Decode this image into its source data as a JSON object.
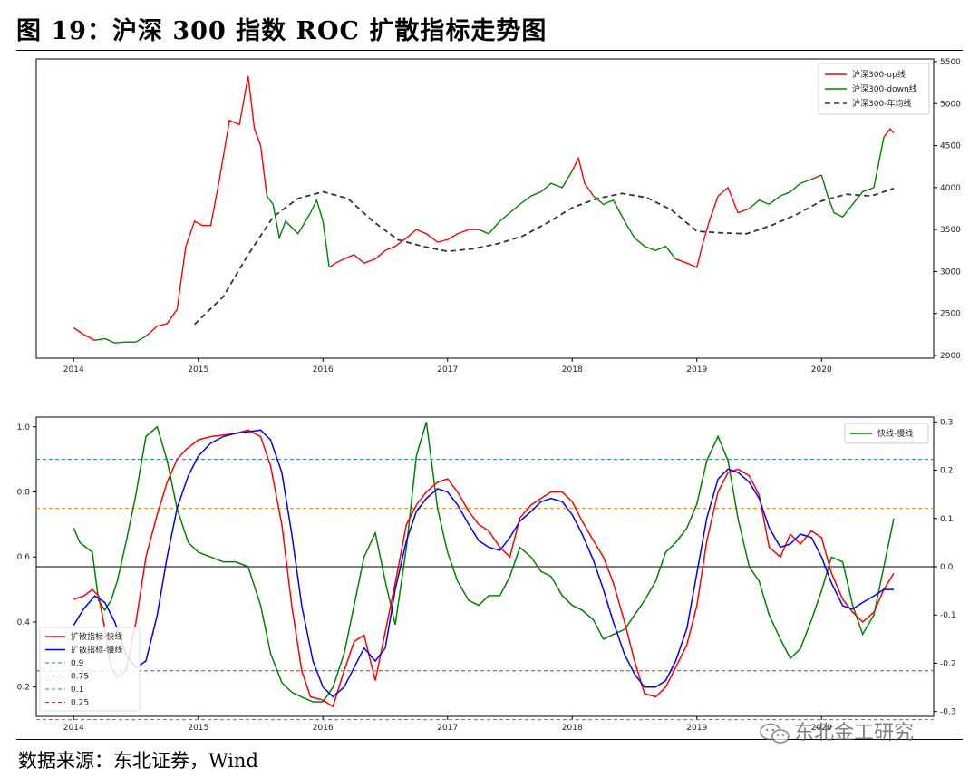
{
  "header": {
    "title": "图 19：沪深 300 指数 ROC 扩散指标走势图"
  },
  "footer": {
    "source": "数据来源：东北证券，Wind",
    "watermark": "东北金工研究"
  },
  "chart_data": [
    {
      "type": "line",
      "x_ticks": [
        "2014",
        "2015",
        "2016",
        "2017",
        "2018",
        "2019",
        "2020"
      ],
      "y_right_ticks": [
        "2000",
        "2500",
        "3000",
        "3500",
        "4000",
        "4500",
        "5000",
        "5500"
      ],
      "ylim_right": [
        2000,
        5500
      ],
      "xlim": [
        2013.7,
        2020.9
      ],
      "grid": false,
      "legend_position": "top-right",
      "legend": [
        {
          "name": "沪深300-up线",
          "color": "#ff0000",
          "dash": ""
        },
        {
          "name": "沪深300-down线",
          "color": "#008000",
          "dash": ""
        },
        {
          "name": "沪深300-年均线",
          "color": "#333333",
          "dash": "6,4"
        }
      ],
      "price": {
        "x": [
          2014.0,
          2014.08,
          2014.17,
          2014.25,
          2014.33,
          2014.42,
          2014.5,
          2014.58,
          2014.67,
          2014.75,
          2014.83,
          2014.9,
          2014.97,
          2015.03,
          2015.1,
          2015.17,
          2015.25,
          2015.33,
          2015.4,
          2015.45,
          2015.5,
          2015.55,
          2015.6,
          2015.65,
          2015.7,
          2015.8,
          2015.9,
          2015.95,
          2016.0,
          2016.05,
          2016.1,
          2016.17,
          2016.25,
          2016.33,
          2016.42,
          2016.5,
          2016.58,
          2016.67,
          2016.75,
          2016.83,
          2016.92,
          2017.0,
          2017.08,
          2017.17,
          2017.25,
          2017.33,
          2017.42,
          2017.5,
          2017.58,
          2017.67,
          2017.75,
          2017.83,
          2017.92,
          2018.0,
          2018.05,
          2018.1,
          2018.17,
          2018.25,
          2018.33,
          2018.42,
          2018.5,
          2018.58,
          2018.67,
          2018.75,
          2018.83,
          2018.92,
          2019.0,
          2019.05,
          2019.1,
          2019.17,
          2019.25,
          2019.33,
          2019.42,
          2019.5,
          2019.58,
          2019.67,
          2019.75,
          2019.83,
          2019.92,
          2020.0,
          2020.05,
          2020.1,
          2020.17,
          2020.25,
          2020.33,
          2020.42,
          2020.5,
          2020.55,
          2020.58
        ],
        "y": [
          2330,
          2250,
          2180,
          2200,
          2150,
          2160,
          2160,
          2230,
          2350,
          2380,
          2550,
          3300,
          3600,
          3550,
          3550,
          4100,
          4800,
          4750,
          5330,
          4700,
          4500,
          3900,
          3800,
          3400,
          3600,
          3450,
          3700,
          3850,
          3600,
          3050,
          3100,
          3150,
          3200,
          3100,
          3150,
          3250,
          3300,
          3400,
          3500,
          3450,
          3350,
          3380,
          3450,
          3500,
          3500,
          3450,
          3600,
          3700,
          3800,
          3900,
          3950,
          4050,
          4000,
          4200,
          4350,
          4050,
          3900,
          3800,
          3850,
          3600,
          3400,
          3300,
          3250,
          3300,
          3150,
          3100,
          3050,
          3350,
          3600,
          3900,
          4000,
          3700,
          3750,
          3850,
          3800,
          3900,
          3950,
          4050,
          4100,
          4150,
          3900,
          3700,
          3650,
          3800,
          3950,
          4000,
          4600,
          4700,
          4650
        ],
        "up_segments": [
          [
            0,
            2
          ],
          [
            7,
            21
          ],
          [
            29,
            44
          ],
          [
            53,
            56
          ],
          [
            64,
            72
          ],
          [
            78,
            79
          ],
          [
            86,
            88
          ]
        ],
        "down_segments": [
          [
            2,
            7
          ],
          [
            21,
            29
          ],
          [
            44,
            53
          ],
          [
            56,
            64
          ],
          [
            72,
            78
          ],
          [
            79,
            86
          ]
        ]
      },
      "annual_ma": {
        "x": [
          2014.97,
          2015.2,
          2015.4,
          2015.6,
          2015.8,
          2016.0,
          2016.2,
          2016.4,
          2016.6,
          2016.8,
          2017.0,
          2017.2,
          2017.4,
          2017.6,
          2017.8,
          2018.0,
          2018.2,
          2018.4,
          2018.6,
          2018.8,
          2019.0,
          2019.2,
          2019.4,
          2019.6,
          2019.8,
          2020.0,
          2020.2,
          2020.4,
          2020.58
        ],
        "y": [
          2370,
          2700,
          3200,
          3650,
          3870,
          3950,
          3870,
          3600,
          3380,
          3300,
          3240,
          3270,
          3330,
          3420,
          3580,
          3760,
          3870,
          3930,
          3880,
          3730,
          3480,
          3460,
          3450,
          3550,
          3680,
          3840,
          3920,
          3900,
          3990
        ]
      }
    },
    {
      "type": "line",
      "x_ticks": [
        "2014",
        "2015",
        "2016",
        "2017",
        "2018",
        "2019",
        "2020"
      ],
      "y_left_ticks": [
        "0.2",
        "0.4",
        "0.6",
        "0.8",
        "1.0"
      ],
      "y_right_ticks": [
        "-0.3",
        "-0.2",
        "-0.1",
        "0.0",
        "0.1",
        "0.2",
        "0.3"
      ],
      "ylim_left": [
        0.11,
        1.03
      ],
      "ylim_right": [
        -0.31,
        0.31
      ],
      "xlim": [
        2013.7,
        2020.9
      ],
      "grid": false,
      "legend_left_position": "bottom-left",
      "legend_right_position": "top-right",
      "legend_left": [
        {
          "name": "扩散指标-快线",
          "color": "#ff0000",
          "dash": ""
        },
        {
          "name": "扩散指标-慢线",
          "color": "#0000ff",
          "dash": ""
        },
        {
          "name": "0.9",
          "color": "#1f77b4",
          "dash": "4,3"
        },
        {
          "name": "0.75",
          "color": "#ff7f0e",
          "dash": "4,3"
        },
        {
          "name": "0.1",
          "color": "#2ca02c",
          "dash": "4,3"
        },
        {
          "name": "0.25",
          "color": "#d62728",
          "dash": "4,3"
        }
      ],
      "legend_right": [
        {
          "name": "快线-慢线",
          "color": "#008000",
          "dash": ""
        }
      ],
      "thresholds": [
        0.9,
        0.75,
        0.1,
        0.25
      ],
      "zero_line": 0.0,
      "series": [
        {
          "name": "扩散指标-快线",
          "axis": "left",
          "x": [
            2014.0,
            2014.08,
            2014.15,
            2014.2,
            2014.25,
            2014.3,
            2014.35,
            2014.42,
            2014.5,
            2014.58,
            2014.67,
            2014.75,
            2014.83,
            2014.9,
            2015.0,
            2015.1,
            2015.2,
            2015.3,
            2015.4,
            2015.5,
            2015.58,
            2015.67,
            2015.75,
            2015.83,
            2015.9,
            2016.0,
            2016.08,
            2016.17,
            2016.25,
            2016.33,
            2016.42,
            2016.5,
            2016.58,
            2016.67,
            2016.75,
            2016.83,
            2016.92,
            2017.0,
            2017.08,
            2017.17,
            2017.25,
            2017.33,
            2017.42,
            2017.5,
            2017.58,
            2017.67,
            2017.75,
            2017.83,
            2017.92,
            2018.0,
            2018.08,
            2018.17,
            2018.25,
            2018.33,
            2018.42,
            2018.5,
            2018.58,
            2018.67,
            2018.75,
            2018.83,
            2018.92,
            2019.0,
            2019.08,
            2019.17,
            2019.25,
            2019.33,
            2019.42,
            2019.5,
            2019.58,
            2019.67,
            2019.75,
            2019.83,
            2019.92,
            2020.0,
            2020.08,
            2020.17,
            2020.25,
            2020.33,
            2020.42,
            2020.5,
            2020.58
          ],
          "y": [
            0.47,
            0.48,
            0.5,
            0.48,
            0.38,
            0.26,
            0.23,
            0.25,
            0.4,
            0.6,
            0.73,
            0.83,
            0.9,
            0.93,
            0.96,
            0.97,
            0.975,
            0.98,
            0.99,
            0.97,
            0.88,
            0.7,
            0.45,
            0.25,
            0.17,
            0.16,
            0.14,
            0.25,
            0.34,
            0.36,
            0.22,
            0.37,
            0.52,
            0.7,
            0.76,
            0.8,
            0.83,
            0.84,
            0.8,
            0.74,
            0.7,
            0.68,
            0.63,
            0.6,
            0.72,
            0.76,
            0.78,
            0.8,
            0.8,
            0.77,
            0.71,
            0.65,
            0.6,
            0.52,
            0.4,
            0.28,
            0.18,
            0.17,
            0.2,
            0.26,
            0.33,
            0.45,
            0.65,
            0.8,
            0.86,
            0.87,
            0.85,
            0.79,
            0.63,
            0.6,
            0.67,
            0.64,
            0.68,
            0.66,
            0.55,
            0.47,
            0.43,
            0.4,
            0.43,
            0.5,
            0.55
          ]
        },
        {
          "name": "扩散指标-慢线",
          "axis": "left",
          "x": [
            2014.0,
            2014.08,
            2014.17,
            2014.25,
            2014.33,
            2014.42,
            2014.5,
            2014.58,
            2014.67,
            2014.75,
            2014.83,
            2014.92,
            2015.0,
            2015.1,
            2015.2,
            2015.3,
            2015.4,
            2015.5,
            2015.58,
            2015.67,
            2015.75,
            2015.83,
            2015.92,
            2016.0,
            2016.08,
            2016.17,
            2016.25,
            2016.33,
            2016.42,
            2016.5,
            2016.58,
            2016.67,
            2016.75,
            2016.83,
            2016.92,
            2017.0,
            2017.08,
            2017.17,
            2017.25,
            2017.33,
            2017.42,
            2017.5,
            2017.58,
            2017.67,
            2017.75,
            2017.83,
            2017.92,
            2018.0,
            2018.08,
            2018.17,
            2018.25,
            2018.33,
            2018.42,
            2018.5,
            2018.58,
            2018.67,
            2018.75,
            2018.83,
            2018.92,
            2019.0,
            2019.08,
            2019.17,
            2019.25,
            2019.33,
            2019.42,
            2019.5,
            2019.58,
            2019.67,
            2019.75,
            2019.83,
            2019.92,
            2020.0,
            2020.08,
            2020.17,
            2020.25,
            2020.33,
            2020.42,
            2020.5,
            2020.58
          ],
          "y": [
            0.39,
            0.44,
            0.48,
            0.46,
            0.4,
            0.3,
            0.26,
            0.28,
            0.42,
            0.6,
            0.75,
            0.85,
            0.91,
            0.95,
            0.97,
            0.98,
            0.985,
            0.99,
            0.96,
            0.86,
            0.67,
            0.45,
            0.28,
            0.2,
            0.17,
            0.2,
            0.26,
            0.32,
            0.28,
            0.32,
            0.5,
            0.65,
            0.74,
            0.78,
            0.81,
            0.8,
            0.76,
            0.7,
            0.65,
            0.63,
            0.62,
            0.66,
            0.71,
            0.74,
            0.77,
            0.78,
            0.77,
            0.73,
            0.67,
            0.59,
            0.5,
            0.4,
            0.3,
            0.24,
            0.2,
            0.2,
            0.22,
            0.28,
            0.38,
            0.55,
            0.72,
            0.84,
            0.87,
            0.86,
            0.83,
            0.78,
            0.69,
            0.63,
            0.64,
            0.67,
            0.66,
            0.6,
            0.52,
            0.45,
            0.44,
            0.46,
            0.48,
            0.5,
            0.5
          ]
        },
        {
          "name": "快线-慢线",
          "axis": "right",
          "x": [
            2014.0,
            2014.05,
            2014.1,
            2014.15,
            2014.2,
            2014.25,
            2014.3,
            2014.35,
            2014.42,
            2014.5,
            2014.58,
            2014.67,
            2014.75,
            2014.83,
            2014.92,
            2015.0,
            2015.1,
            2015.2,
            2015.3,
            2015.4,
            2015.5,
            2015.58,
            2015.67,
            2015.75,
            2015.83,
            2015.92,
            2016.0,
            2016.08,
            2016.17,
            2016.25,
            2016.33,
            2016.42,
            2016.5,
            2016.58,
            2016.67,
            2016.75,
            2016.83,
            2016.92,
            2017.0,
            2017.08,
            2017.17,
            2017.25,
            2017.33,
            2017.42,
            2017.5,
            2017.58,
            2017.67,
            2017.75,
            2017.83,
            2017.92,
            2018.0,
            2018.08,
            2018.17,
            2018.25,
            2018.33,
            2018.42,
            2018.5,
            2018.58,
            2018.67,
            2018.75,
            2018.83,
            2018.92,
            2019.0,
            2019.08,
            2019.17,
            2019.25,
            2019.33,
            2019.42,
            2019.5,
            2019.58,
            2019.67,
            2019.75,
            2019.83,
            2019.92,
            2020.0,
            2020.08,
            2020.17,
            2020.25,
            2020.33,
            2020.42,
            2020.5,
            2020.58
          ],
          "y": [
            0.08,
            0.05,
            0.04,
            0.03,
            -0.07,
            -0.09,
            -0.07,
            -0.03,
            0.05,
            0.15,
            0.27,
            0.29,
            0.22,
            0.12,
            0.05,
            0.03,
            0.02,
            0.01,
            0.01,
            0.0,
            -0.08,
            -0.18,
            -0.24,
            -0.26,
            -0.27,
            -0.28,
            -0.28,
            -0.25,
            -0.18,
            -0.08,
            0.02,
            0.07,
            -0.03,
            -0.12,
            0.04,
            0.23,
            0.3,
            0.12,
            0.03,
            -0.03,
            -0.07,
            -0.08,
            -0.06,
            -0.06,
            -0.02,
            0.04,
            0.02,
            -0.01,
            -0.02,
            -0.06,
            -0.08,
            -0.09,
            -0.11,
            -0.15,
            -0.14,
            -0.13,
            -0.1,
            -0.07,
            -0.03,
            0.03,
            0.05,
            0.08,
            0.13,
            0.22,
            0.27,
            0.22,
            0.1,
            0.0,
            -0.03,
            -0.1,
            -0.15,
            -0.19,
            -0.17,
            -0.11,
            -0.05,
            0.02,
            0.01,
            -0.08,
            -0.14,
            -0.1,
            0.0,
            0.1
          ]
        }
      ]
    }
  ]
}
